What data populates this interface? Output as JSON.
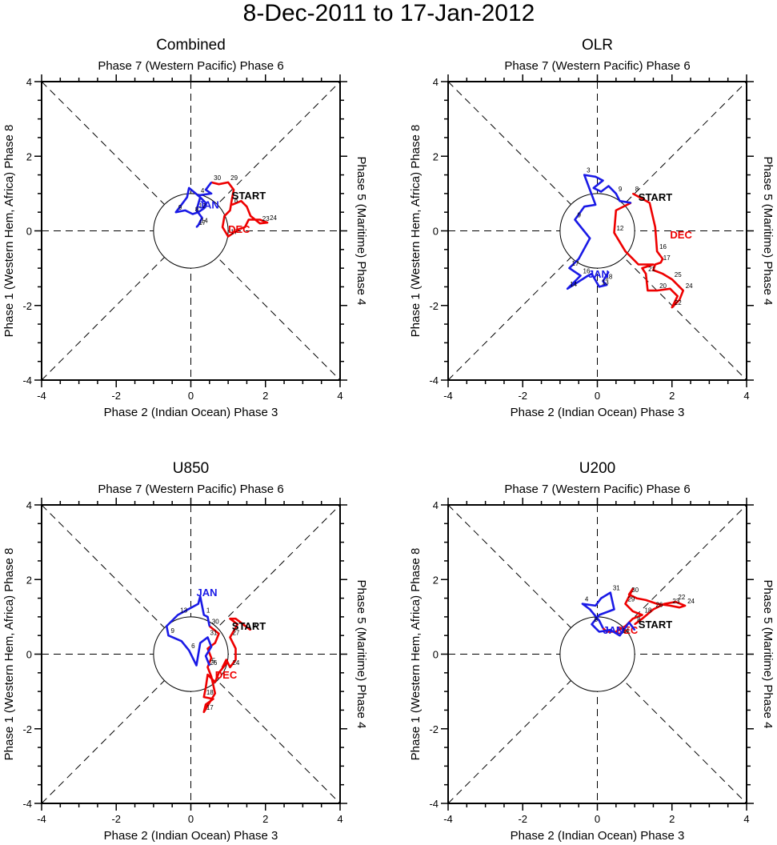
{
  "figure_title": "8-Dec-2011 to 17-Jan-2012",
  "colors": {
    "dec": "#ee0000",
    "jan": "#1a1ae6",
    "start": "#000000",
    "axis": "#000000"
  },
  "chart_data": [
    {
      "type": "line",
      "title": "Combined",
      "top_label": "Phase 7 (Western Pacific) Phase 6",
      "xlabel": "Phase 2 (Indian Ocean) Phase 3",
      "ylabel": "Phase 1 (Western Hem, Africa) Phase 8",
      "right_label": "Phase 5 (Maritime) Phase 4",
      "xlim": [
        -4,
        4
      ],
      "ylim": [
        -4,
        4
      ],
      "xticks": [
        "-4",
        "-2",
        "0",
        "2",
        "4"
      ],
      "yticks": [
        "-4",
        "-2",
        "0",
        "2",
        "4"
      ],
      "series": [
        {
          "name": "DEC",
          "color": "dec",
          "label": "DEC",
          "label_pos": [
            1.0,
            -0.05
          ],
          "points": [
            [
              1.1,
              0.7
            ],
            [
              1.35,
              0.8
            ],
            [
              1.5,
              0.65
            ],
            [
              1.6,
              0.4
            ],
            [
              1.85,
              0.2
            ],
            [
              2.05,
              0.22
            ],
            [
              1.85,
              0.3
            ],
            [
              1.55,
              0.3
            ],
            [
              1.45,
              0.1
            ],
            [
              1.3,
              0.05
            ],
            [
              1.15,
              -0.05
            ],
            [
              1.0,
              -0.15
            ],
            [
              0.85,
              0.1
            ],
            [
              0.9,
              0.4
            ],
            [
              1.05,
              0.55
            ],
            [
              1.1,
              0.85
            ],
            [
              1.15,
              1.1
            ],
            [
              1.0,
              1.3
            ],
            [
              0.75,
              1.25
            ],
            [
              0.55,
              1.3
            ]
          ],
          "days": [
            "8",
            "",
            "",
            "",
            "23",
            "24",
            "",
            "",
            "",
            "",
            "",
            "17",
            "",
            "",
            "",
            "",
            "",
            "29",
            "",
            "30"
          ]
        },
        {
          "name": "JAN",
          "color": "jan",
          "label": "JAN",
          "label_pos": [
            0.2,
            0.6
          ],
          "points": [
            [
              0.55,
              1.3
            ],
            [
              0.4,
              1.1
            ],
            [
              0.55,
              1.0
            ],
            [
              0.2,
              0.95
            ],
            [
              0.4,
              0.75
            ],
            [
              0.35,
              0.6
            ],
            [
              0.2,
              0.5
            ],
            [
              0.05,
              0.45
            ],
            [
              -0.15,
              0.55
            ],
            [
              -0.4,
              0.5
            ],
            [
              -0.1,
              0.9
            ],
            [
              -0.05,
              1.15
            ],
            [
              0.25,
              0.9
            ],
            [
              0.15,
              0.55
            ],
            [
              0.3,
              0.35
            ],
            [
              0.2,
              0.15
            ],
            [
              0.15,
              0.1
            ]
          ],
          "days": [
            "",
            "",
            "",
            "4",
            "",
            "",
            "",
            "8",
            "",
            "9",
            "",
            "",
            "",
            "12",
            "",
            "14",
            "17"
          ]
        }
      ],
      "start": {
        "label": "START",
        "pos": [
          1.1,
          0.85
        ]
      }
    },
    {
      "type": "line",
      "title": "OLR",
      "top_label": "Phase 7 (Western Pacific) Phase 6",
      "xlabel": "Phase 2 (Indian Ocean) Phase 3",
      "ylabel": "Phase 1 (Western Hem, Africa) Phase 8",
      "right_label": "Phase 5 (Maritime) Phase 4",
      "xlim": [
        -4,
        4
      ],
      "ylim": [
        -4,
        4
      ],
      "xticks": [
        "-4",
        "-2",
        "0",
        "2",
        "4"
      ],
      "yticks": [
        "-4",
        "-2",
        "0",
        "2",
        "4"
      ],
      "series": [
        {
          "name": "DEC",
          "color": "dec",
          "label": "DEC",
          "label_pos": [
            1.95,
            -0.2
          ],
          "points": [
            [
              0.95,
              1.0
            ],
            [
              1.4,
              0.75
            ],
            [
              1.55,
              0.1
            ],
            [
              1.6,
              -0.55
            ],
            [
              1.75,
              -0.75
            ],
            [
              1.7,
              -0.85
            ],
            [
              1.55,
              -0.9
            ],
            [
              1.5,
              -1.05
            ],
            [
              1.75,
              -1.15
            ],
            [
              2.0,
              -1.3
            ],
            [
              2.3,
              -1.6
            ],
            [
              2.2,
              -1.85
            ],
            [
              2.0,
              -2.05
            ],
            [
              2.15,
              -1.75
            ],
            [
              1.95,
              -1.55
            ],
            [
              1.6,
              -1.6
            ],
            [
              1.35,
              -1.6
            ],
            [
              1.3,
              -1.15
            ],
            [
              1.2,
              -1.0
            ],
            [
              1.5,
              -0.9
            ],
            [
              1.1,
              -0.9
            ],
            [
              0.75,
              -0.55
            ],
            [
              0.45,
              -0.05
            ],
            [
              0.5,
              0.55
            ],
            [
              0.9,
              0.75
            ]
          ],
          "days": [
            "8",
            "",
            "",
            "16",
            "",
            "17",
            "",
            "",
            "",
            "25",
            "24",
            "",
            "22",
            "",
            "",
            "20",
            "",
            "21",
            "",
            "",
            "",
            "",
            "12",
            "",
            ""
          ]
        },
        {
          "name": "JAN",
          "color": "jan",
          "label": "JAN",
          "label_pos": [
            -0.25,
            -1.25
          ],
          "points": [
            [
              0.9,
              0.75
            ],
            [
              0.6,
              0.8
            ],
            [
              0.5,
              1.0
            ],
            [
              0.3,
              1.2
            ],
            [
              0.1,
              1.05
            ],
            [
              -0.1,
              1.15
            ],
            [
              0.15,
              1.35
            ],
            [
              -0.05,
              1.45
            ],
            [
              -0.35,
              1.5
            ],
            [
              -0.05,
              0.7
            ],
            [
              -0.35,
              0.65
            ],
            [
              -0.6,
              0.3
            ],
            [
              -0.2,
              -0.2
            ],
            [
              -0.5,
              -0.75
            ],
            [
              -0.75,
              -1.0
            ],
            [
              -0.45,
              -1.2
            ],
            [
              -0.8,
              -1.55
            ],
            [
              -0.25,
              -1.2
            ],
            [
              -0.15,
              -1.15
            ],
            [
              0.05,
              -1.5
            ],
            [
              0.25,
              -1.45
            ],
            [
              0.15,
              -1.35
            ],
            [
              0.3,
              -1.1
            ]
          ],
          "days": [
            "",
            "",
            "9",
            "",
            "",
            "",
            "",
            "",
            "3",
            "",
            "",
            "9",
            "",
            "",
            "17",
            "16",
            "14",
            "",
            "",
            "13",
            "",
            "18",
            ""
          ]
        }
      ],
      "start": {
        "label": "START",
        "pos": [
          1.1,
          0.8
        ]
      }
    },
    {
      "type": "line",
      "title": "U850",
      "top_label": "Phase 7 (Western Pacific) Phase 6",
      "xlabel": "Phase 2 (Indian Ocean) Phase 3",
      "ylabel": "Phase 1 (Western Hem, Africa) Phase 8",
      "right_label": "Phase 5 (Maritime) Phase 4",
      "xlim": [
        -4,
        4
      ],
      "ylim": [
        -4,
        4
      ],
      "xticks": [
        "-4",
        "-2",
        "0",
        "2",
        "4"
      ],
      "yticks": [
        "-4",
        "-2",
        "0",
        "2",
        "4"
      ],
      "series": [
        {
          "name": "DEC",
          "color": "dec",
          "label": "DEC",
          "label_pos": [
            0.65,
            -0.65
          ],
          "points": [
            [
              1.6,
              0.65
            ],
            [
              1.2,
              0.95
            ],
            [
              1.05,
              0.95
            ],
            [
              1.25,
              0.8
            ],
            [
              1.05,
              0.45
            ],
            [
              1.2,
              0.15
            ],
            [
              1.2,
              -0.15
            ],
            [
              1.05,
              -0.35
            ],
            [
              0.95,
              -0.15
            ],
            [
              0.85,
              -0.35
            ],
            [
              0.95,
              -0.25
            ],
            [
              0.75,
              -0.5
            ],
            [
              0.65,
              -0.75
            ],
            [
              0.45,
              -0.55
            ],
            [
              0.4,
              -0.9
            ],
            [
              0.35,
              -1.15
            ],
            [
              0.6,
              -1.2
            ],
            [
              0.4,
              -1.35
            ],
            [
              0.35,
              -1.55
            ],
            [
              0.65,
              -1.05
            ],
            [
              0.55,
              -0.6
            ],
            [
              0.45,
              -0.35
            ],
            [
              0.55,
              -0.1
            ],
            [
              0.45,
              0.15
            ],
            [
              0.65,
              0.3
            ],
            [
              0.75,
              0.55
            ],
            [
              0.5,
              0.75
            ]
          ],
          "days": [
            "8",
            "",
            "",
            "",
            "27",
            "",
            "",
            "24",
            "",
            "",
            "",
            "",
            "",
            "",
            "",
            "18",
            "",
            "",
            "17",
            "",
            "",
            "26",
            "",
            "",
            "",
            "",
            ""
          ]
        },
        {
          "name": "JAN",
          "color": "jan",
          "label": "JAN",
          "label_pos": [
            0.15,
            1.55
          ],
          "points": [
            [
              0.5,
              0.75
            ],
            [
              0.45,
              1.0
            ],
            [
              0.35,
              1.05
            ],
            [
              0.25,
              1.55
            ],
            [
              0.2,
              1.35
            ],
            [
              -0.35,
              1.05
            ],
            [
              -0.65,
              0.75
            ],
            [
              -0.6,
              0.5
            ],
            [
              -0.25,
              0.35
            ],
            [
              -0.05,
              0.1
            ],
            [
              0.15,
              -0.3
            ],
            [
              0.25,
              0.3
            ],
            [
              0.45,
              0.45
            ],
            [
              0.55,
              0.2
            ],
            [
              0.4,
              -0.05
            ],
            [
              0.5,
              -0.3
            ]
          ],
          "days": [
            "30",
            "",
            "1",
            "",
            "",
            "13",
            "",
            "9",
            "",
            "6",
            "",
            "",
            "31",
            "",
            "",
            "5"
          ]
        }
      ],
      "start": {
        "label": "START",
        "pos": [
          1.1,
          0.65
        ]
      }
    },
    {
      "type": "line",
      "title": "U200",
      "top_label": "Phase 7 (Western Pacific) Phase 6",
      "xlabel": "Phase 2 (Indian Ocean) Phase 3",
      "ylabel": "Phase 1 (Western Hem, Africa) Phase 8",
      "right_label": "Phase 5 (Maritime) Phase 4",
      "xlim": [
        -4,
        4
      ],
      "ylim": [
        -4,
        4
      ],
      "xticks": [
        "-4",
        "-2",
        "0",
        "2",
        "4"
      ],
      "yticks": [
        "-4",
        "-2",
        "0",
        "2",
        "4"
      ],
      "series": [
        {
          "name": "DEC",
          "color": "dec",
          "label": "DEC",
          "label_pos": [
            0.5,
            0.55
          ],
          "points": [
            [
              1.0,
              0.8
            ],
            [
              1.2,
              0.95
            ],
            [
              1.5,
              1.2
            ],
            [
              1.8,
              1.35
            ],
            [
              2.1,
              1.4
            ],
            [
              2.35,
              1.3
            ],
            [
              2.2,
              1.25
            ],
            [
              1.95,
              1.3
            ],
            [
              1.6,
              1.35
            ],
            [
              1.3,
              1.45
            ],
            [
              1.05,
              1.5
            ],
            [
              0.85,
              1.6
            ],
            [
              0.95,
              1.75
            ],
            [
              0.75,
              1.35
            ],
            [
              0.95,
              1.15
            ],
            [
              1.2,
              1.05
            ],
            [
              0.95,
              0.95
            ],
            [
              0.75,
              0.75
            ],
            [
              0.5,
              0.6
            ],
            [
              0.25,
              0.6
            ],
            [
              0.15,
              0.7
            ]
          ],
          "days": [
            "8",
            "",
            "26",
            "",
            "22",
            "24",
            "",
            "23",
            "",
            "",
            "",
            "30",
            "",
            "29",
            "",
            "18",
            "",
            "",
            "",
            "",
            ""
          ]
        },
        {
          "name": "JAN",
          "color": "jan",
          "label": "JAN",
          "label_pos": [
            0.15,
            0.55
          ],
          "points": [
            [
              0.15,
              0.7
            ],
            [
              0.05,
              0.9
            ],
            [
              -0.2,
              1.2
            ],
            [
              -0.4,
              1.35
            ],
            [
              -0.05,
              1.3
            ],
            [
              0.1,
              1.5
            ],
            [
              0.35,
              1.65
            ],
            [
              0.45,
              1.2
            ],
            [
              0.05,
              1.05
            ],
            [
              -0.15,
              0.8
            ],
            [
              0.05,
              0.6
            ],
            [
              0.35,
              0.65
            ],
            [
              0.6,
              0.5
            ],
            [
              0.85,
              0.85
            ],
            [
              1.0,
              0.65
            ]
          ],
          "days": [
            "",
            "",
            "",
            "4",
            "",
            "",
            "31",
            "",
            "",
            "8",
            "",
            "",
            "14",
            "",
            ""
          ]
        }
      ],
      "start": {
        "label": "START",
        "pos": [
          1.1,
          0.7
        ]
      }
    }
  ]
}
